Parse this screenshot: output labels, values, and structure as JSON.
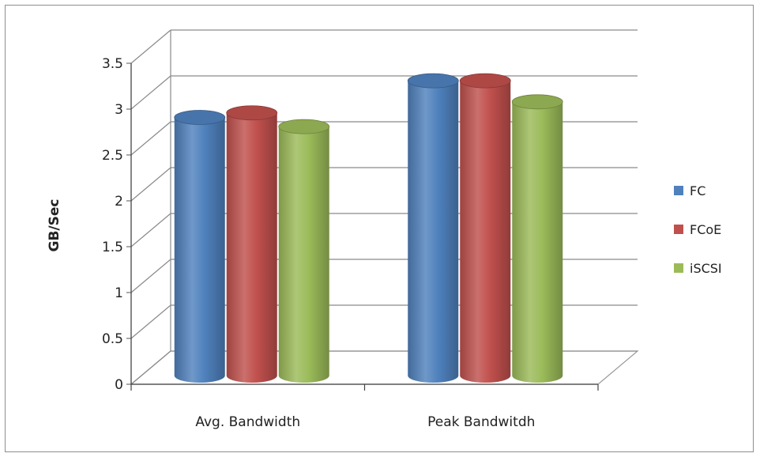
{
  "chart_data": {
    "type": "bar",
    "title": "",
    "xlabel": "",
    "ylabel": "GB/Sec",
    "categories": [
      "Avg. Bandwidth",
      "Peak Bandwitdh"
    ],
    "series": [
      {
        "name": "FC",
        "values": [
          2.78,
          3.18
        ],
        "color": "#4f81bd"
      },
      {
        "name": "FCoE",
        "values": [
          2.83,
          3.18
        ],
        "color": "#c0504d"
      },
      {
        "name": "iSCSI",
        "values": [
          2.68,
          2.95
        ],
        "color": "#9bbb59"
      }
    ],
    "ylim": [
      0,
      3.5
    ],
    "yticks": [
      "0",
      "0.5",
      "1",
      "1.5",
      "2",
      "2.5",
      "3",
      "3.5"
    ],
    "grid": true,
    "legend_position": "right",
    "style": "3d-cylinder"
  }
}
